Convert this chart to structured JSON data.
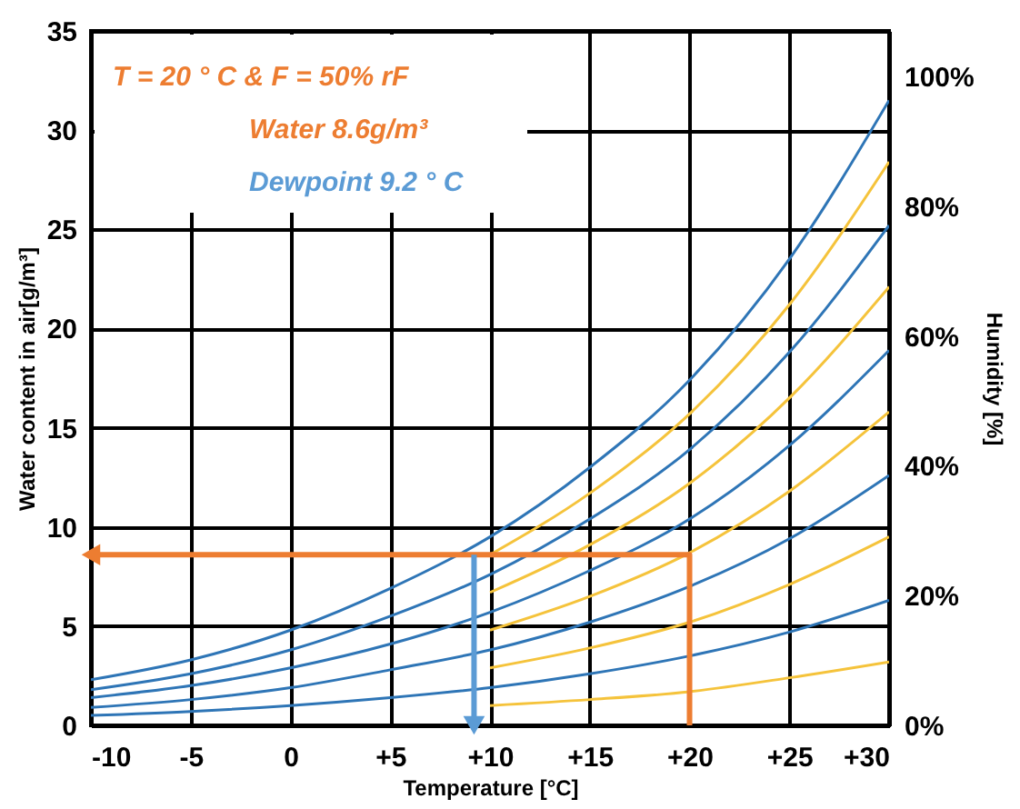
{
  "chart_data": {
    "type": "line",
    "annotations": [
      "T = 20 ° C   & F = 50% rF",
      "Water 8.6g/m³",
      "Dewpoint 9.2 ° C"
    ],
    "xlabel": "Temperature [°C]",
    "ylabel": "Water content in air[g/m³]",
    "y2label": "Humidity [%]",
    "x": [
      -10,
      -5,
      0,
      5,
      10,
      15,
      20,
      25,
      30
    ],
    "series": [
      {
        "color": "#2e75b6",
        "values": [
          2.3,
          3.3,
          4.8,
          6.9,
          9.5,
          13.0,
          17.4,
          23.5,
          31.5
        ]
      },
      {
        "color": "#2e75b6",
        "values": [
          1.8,
          2.6,
          3.8,
          5.5,
          7.6,
          10.4,
          13.9,
          18.8,
          25.2
        ]
      },
      {
        "color": "#2e75b6",
        "values": [
          1.4,
          2.0,
          2.9,
          4.1,
          5.7,
          7.8,
          10.4,
          14.1,
          18.9
        ]
      },
      {
        "color": "#2e75b6",
        "values": [
          0.9,
          1.3,
          1.9,
          2.8,
          3.8,
          5.2,
          7.0,
          9.4,
          12.6
        ]
      },
      {
        "color": "#2e75b6",
        "values": [
          0.5,
          0.7,
          1.0,
          1.4,
          1.9,
          2.6,
          3.5,
          4.7,
          6.3
        ]
      },
      {
        "color": "#f5c33b",
        "x": [
          10,
          15,
          20,
          25,
          30
        ],
        "values": [
          8.6,
          11.7,
          15.7,
          21.2,
          28.4
        ]
      },
      {
        "color": "#f5c33b",
        "x": [
          10,
          15,
          20,
          25,
          30
        ],
        "values": [
          6.7,
          9.1,
          12.2,
          16.5,
          22.1
        ]
      },
      {
        "color": "#f5c33b",
        "x": [
          10,
          15,
          20,
          25,
          30
        ],
        "values": [
          4.8,
          6.5,
          8.7,
          11.8,
          15.8
        ]
      },
      {
        "color": "#f5c33b",
        "x": [
          10,
          15,
          20,
          25,
          30
        ],
        "values": [
          2.9,
          3.9,
          5.2,
          7.1,
          9.5
        ]
      },
      {
        "color": "#f5c33b",
        "x": [
          10,
          15,
          20,
          25,
          30
        ],
        "values": [
          1.0,
          1.3,
          1.7,
          2.4,
          3.2
        ]
      },
      {
        "color": "#ed7d31",
        "x": [
          20,
          20,
          -10
        ],
        "values": [
          0,
          8.6,
          8.6
        ]
      },
      {
        "color": "#5b9bd5",
        "x": [
          9.2,
          9.2
        ],
        "values": [
          8.6,
          0
        ]
      }
    ],
    "xlim": [
      -10,
      30
    ],
    "xticks": [
      -10,
      -5,
      0,
      {
        "value": 5,
        "label": "+5"
      },
      {
        "value": 10,
        "label": "+10"
      },
      {
        "value": 15,
        "label": "+15"
      },
      {
        "value": 20,
        "label": "+20"
      },
      {
        "value": 25,
        "label": "+25"
      },
      {
        "value": 30,
        "label": "+30"
      }
    ],
    "ylim": [
      0,
      35
    ],
    "yticks": [
      0,
      5,
      10,
      15,
      20,
      25,
      30,
      35
    ],
    "y2lim": [
      0,
      107
    ],
    "y2ticks": [
      {
        "value": 0,
        "label": "0%"
      },
      {
        "value": 20,
        "label": "20%"
      },
      {
        "value": 40,
        "label": "40%"
      },
      {
        "value": 60,
        "label": "60%"
      },
      {
        "value": 80,
        "label": "80%"
      },
      {
        "value": 100,
        "label": "100%"
      }
    ],
    "grid": true
  }
}
